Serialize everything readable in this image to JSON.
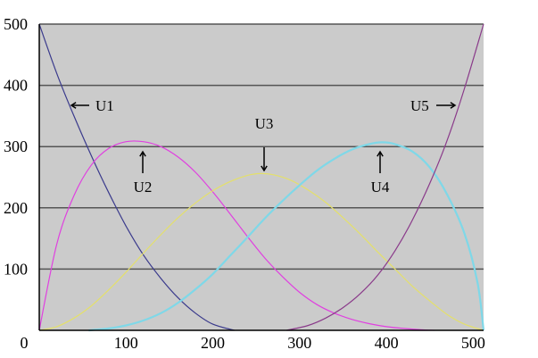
{
  "chart_data": {
    "type": "line",
    "title": "",
    "xlabel": "",
    "ylabel": "",
    "xlim": [
      0,
      512
    ],
    "ylim": [
      0,
      500
    ],
    "x_ticks": [
      {
        "value": 0,
        "label": "0"
      },
      {
        "value": 100,
        "label": "100"
      },
      {
        "value": 200,
        "label": "200"
      },
      {
        "value": 300,
        "label": "300"
      },
      {
        "value": 400,
        "label": "400"
      },
      {
        "value": 500,
        "label": "500"
      }
    ],
    "y_ticks": [
      {
        "value": 100,
        "label": "100"
      },
      {
        "value": 200,
        "label": "200"
      },
      {
        "value": 300,
        "label": "300"
      },
      {
        "value": 400,
        "label": "400"
      },
      {
        "value": 500,
        "label": "500"
      }
    ],
    "grid": "horizontal",
    "plot_background": "#cbcbcb",
    "series": [
      {
        "name": "U1",
        "color": "#3a3a8c",
        "width": 1.2,
        "points": [
          [
            0,
            500
          ],
          [
            20,
            420
          ],
          [
            40,
            350
          ],
          [
            60,
            285
          ],
          [
            80,
            225
          ],
          [
            100,
            170
          ],
          [
            120,
            123
          ],
          [
            140,
            85
          ],
          [
            160,
            53
          ],
          [
            180,
            28
          ],
          [
            200,
            10
          ],
          [
            225,
            0
          ]
        ]
      },
      {
        "name": "U2",
        "color": "#e040e0",
        "width": 1.2,
        "points": [
          [
            0,
            0
          ],
          [
            20,
            140
          ],
          [
            40,
            220
          ],
          [
            60,
            270
          ],
          [
            80,
            297
          ],
          [
            100,
            308
          ],
          [
            120,
            308
          ],
          [
            140,
            300
          ],
          [
            160,
            283
          ],
          [
            180,
            258
          ],
          [
            200,
            226
          ],
          [
            220,
            190
          ],
          [
            240,
            153
          ],
          [
            260,
            118
          ],
          [
            280,
            88
          ],
          [
            300,
            62
          ],
          [
            320,
            42
          ],
          [
            340,
            28
          ],
          [
            360,
            18
          ],
          [
            380,
            11
          ],
          [
            400,
            6
          ],
          [
            420,
            3
          ],
          [
            440,
            1
          ],
          [
            455,
            0
          ]
        ]
      },
      {
        "name": "U3",
        "color": "#e4e06a",
        "width": 1.2,
        "points": [
          [
            0,
            0
          ],
          [
            20,
            6
          ],
          [
            40,
            20
          ],
          [
            60,
            40
          ],
          [
            80,
            66
          ],
          [
            100,
            95
          ],
          [
            120,
            126
          ],
          [
            140,
            156
          ],
          [
            160,
            184
          ],
          [
            180,
            208
          ],
          [
            200,
            228
          ],
          [
            220,
            243
          ],
          [
            240,
            253
          ],
          [
            255,
            256
          ],
          [
            270,
            254
          ],
          [
            290,
            245
          ],
          [
            310,
            229
          ],
          [
            330,
            209
          ],
          [
            350,
            184
          ],
          [
            370,
            157
          ],
          [
            390,
            128
          ],
          [
            410,
            100
          ],
          [
            430,
            72
          ],
          [
            450,
            48
          ],
          [
            470,
            26
          ],
          [
            490,
            10
          ],
          [
            512,
            0
          ]
        ]
      },
      {
        "name": "U4",
        "color": "#7fd8e8",
        "width": 2.2,
        "points": [
          [
            57,
            0
          ],
          [
            80,
            3
          ],
          [
            100,
            8
          ],
          [
            120,
            16
          ],
          [
            140,
            28
          ],
          [
            160,
            45
          ],
          [
            180,
            67
          ],
          [
            200,
            92
          ],
          [
            220,
            122
          ],
          [
            240,
            152
          ],
          [
            260,
            183
          ],
          [
            280,
            211
          ],
          [
            300,
            237
          ],
          [
            320,
            261
          ],
          [
            340,
            280
          ],
          [
            360,
            295
          ],
          [
            380,
            304
          ],
          [
            395,
            307
          ],
          [
            410,
            304
          ],
          [
            430,
            292
          ],
          [
            450,
            266
          ],
          [
            470,
            222
          ],
          [
            490,
            158
          ],
          [
            505,
            78
          ],
          [
            512,
            0
          ]
        ]
      },
      {
        "name": "U5",
        "color": "#8a3a8a",
        "width": 1.2,
        "points": [
          [
            285,
            0
          ],
          [
            310,
            8
          ],
          [
            330,
            20
          ],
          [
            350,
            37
          ],
          [
            370,
            60
          ],
          [
            390,
            90
          ],
          [
            410,
            130
          ],
          [
            430,
            180
          ],
          [
            450,
            240
          ],
          [
            470,
            310
          ],
          [
            490,
            395
          ],
          [
            512,
            500
          ]
        ]
      }
    ],
    "annotations": [
      {
        "label": "U1",
        "arrow": "left"
      },
      {
        "label": "U2",
        "arrow": "up"
      },
      {
        "label": "U3",
        "arrow": "down"
      },
      {
        "label": "U4",
        "arrow": "up"
      },
      {
        "label": "U5",
        "arrow": "right"
      }
    ]
  }
}
